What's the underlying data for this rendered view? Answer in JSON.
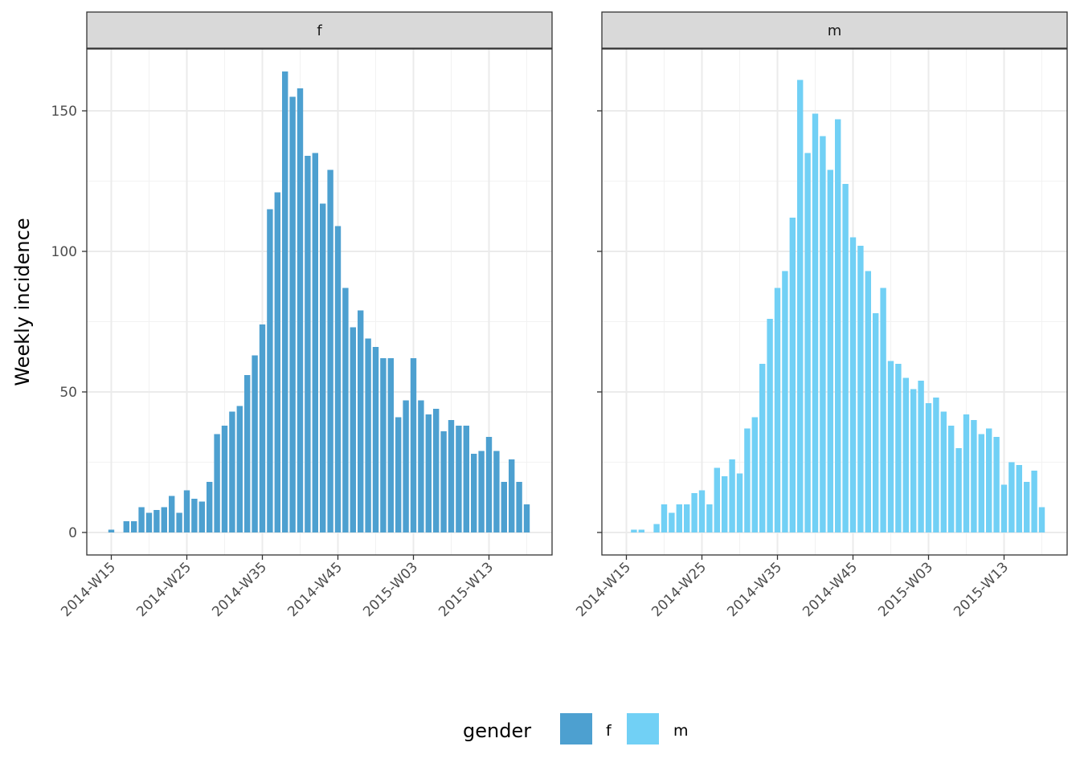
{
  "chart_data": {
    "type": "bar",
    "facet_by": "gender",
    "ylabel": "Weekly incidence",
    "xlabel": "",
    "ylim": [
      0,
      172
    ],
    "y_ticks": [
      0,
      50,
      100,
      150
    ],
    "x_ticks": [
      "2014-W15",
      "2014-W25",
      "2014-W35",
      "2014-W45",
      "2015-W03",
      "2015-W13"
    ],
    "legend": {
      "title": "gender",
      "position": "bottom",
      "entries": [
        "f",
        "m"
      ]
    },
    "grid": true,
    "weeks": [
      "2014-W15",
      "2014-W16",
      "2014-W17",
      "2014-W18",
      "2014-W19",
      "2014-W20",
      "2014-W21",
      "2014-W22",
      "2014-W23",
      "2014-W24",
      "2014-W25",
      "2014-W26",
      "2014-W27",
      "2014-W28",
      "2014-W29",
      "2014-W30",
      "2014-W31",
      "2014-W32",
      "2014-W33",
      "2014-W34",
      "2014-W35",
      "2014-W36",
      "2014-W37",
      "2014-W38",
      "2014-W39",
      "2014-W40",
      "2014-W41",
      "2014-W42",
      "2014-W43",
      "2014-W44",
      "2014-W45",
      "2014-W46",
      "2014-W47",
      "2014-W48",
      "2014-W49",
      "2014-W50",
      "2014-W51",
      "2014-W52",
      "2015-W01",
      "2015-W02",
      "2015-W03",
      "2015-W04",
      "2015-W05",
      "2015-W06",
      "2015-W07",
      "2015-W08",
      "2015-W09",
      "2015-W10",
      "2015-W11",
      "2015-W12",
      "2015-W13",
      "2015-W14",
      "2015-W15",
      "2015-W16",
      "2015-W17",
      "2015-W18"
    ],
    "series": [
      {
        "name": "f",
        "color": "#4da0d0",
        "values": [
          1,
          0,
          4,
          4,
          9,
          7,
          8,
          9,
          13,
          7,
          15,
          12,
          11,
          18,
          35,
          38,
          43,
          45,
          56,
          63,
          74,
          115,
          121,
          164,
          155,
          158,
          134,
          135,
          117,
          129,
          109,
          87,
          73,
          79,
          69,
          66,
          62,
          62,
          41,
          47,
          62,
          47,
          42,
          44,
          36,
          40,
          38,
          38,
          28,
          29,
          34,
          29,
          18,
          26,
          18,
          10
        ]
      },
      {
        "name": "m",
        "color": "#71d0f5",
        "values": [
          0,
          1,
          1,
          0,
          3,
          10,
          7,
          10,
          10,
          14,
          15,
          10,
          23,
          20,
          26,
          21,
          37,
          41,
          60,
          76,
          87,
          93,
          112,
          161,
          135,
          149,
          141,
          129,
          147,
          124,
          105,
          102,
          93,
          78,
          87,
          61,
          60,
          55,
          51,
          54,
          46,
          48,
          43,
          38,
          30,
          42,
          40,
          35,
          37,
          34,
          17,
          25,
          24,
          18,
          22,
          9
        ]
      }
    ]
  }
}
